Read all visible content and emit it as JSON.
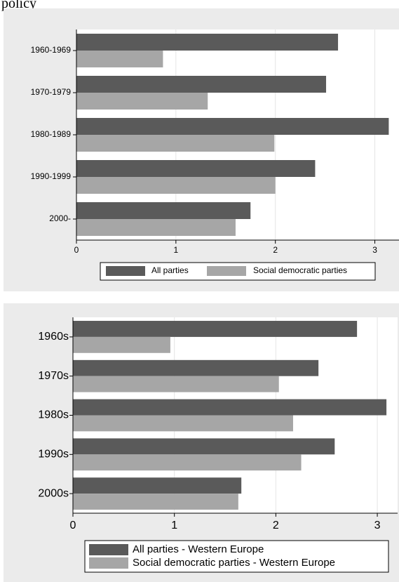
{
  "top_text": "policy",
  "chart_data": [
    {
      "type": "bar",
      "orientation": "horizontal",
      "categories": [
        "1960-1969",
        "1970-1979",
        "1980-1989",
        "1990-1999",
        "2000-"
      ],
      "series": [
        {
          "name": "All parties",
          "values": [
            2.63,
            2.51,
            3.14,
            2.4,
            1.75
          ],
          "color": "#5a5a5a"
        },
        {
          "name": "Social democratic parties",
          "values": [
            0.87,
            1.32,
            1.99,
            2.0,
            1.6
          ],
          "color": "#a6a6a6"
        }
      ],
      "xlim": [
        0,
        3.25
      ],
      "xticks": [
        "0",
        "1",
        "2",
        "3"
      ],
      "grid": true,
      "legend": "bottom"
    },
    {
      "type": "bar",
      "orientation": "horizontal",
      "categories": [
        "1960s",
        "1970s",
        "1980s",
        "1990s",
        "2000s"
      ],
      "series": [
        {
          "name": "All parties - Western Europe",
          "values": [
            2.8,
            2.42,
            3.09,
            2.58,
            1.66
          ],
          "color": "#5a5a5a"
        },
        {
          "name": "Social democratic parties - Western Europe",
          "values": [
            0.96,
            2.03,
            2.17,
            2.25,
            1.63
          ],
          "color": "#a6a6a6"
        }
      ],
      "xlim": [
        0,
        3.2
      ],
      "xticks": [
        "0",
        "1",
        "2",
        "3"
      ],
      "grid": true,
      "legend": "bottom"
    }
  ]
}
